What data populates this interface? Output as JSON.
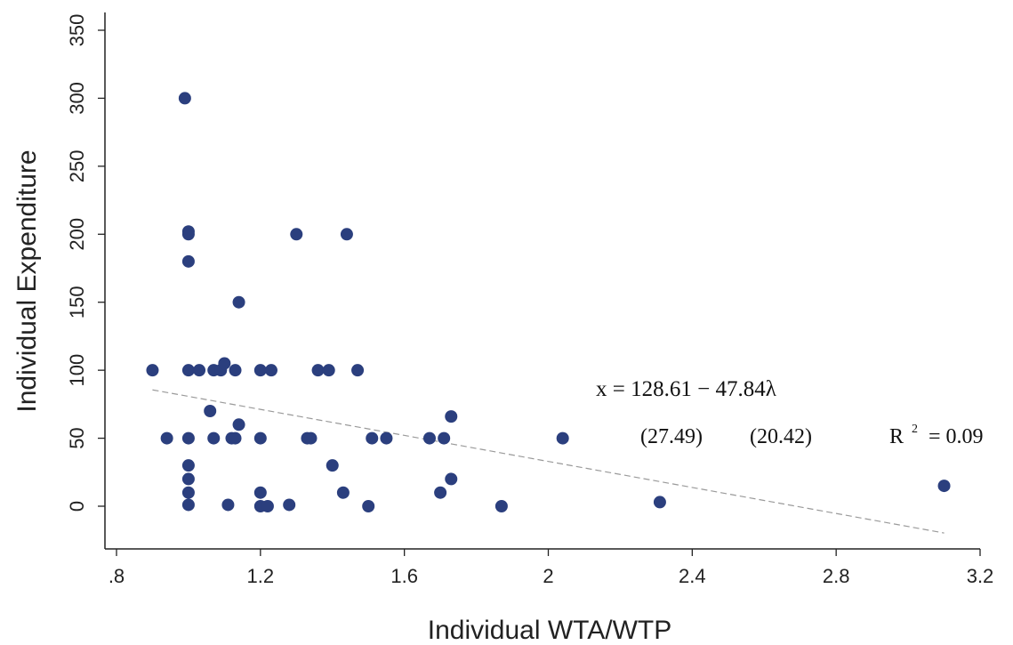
{
  "chart_data": {
    "type": "scatter",
    "xlabel": "Individual  WTA/WTP",
    "ylabel": "Individual  Expenditure",
    "xlim": [
      0.8,
      3.2
    ],
    "ylim": [
      -30,
      360
    ],
    "x_ticks": [
      0.8,
      1.2,
      1.6,
      2.0,
      2.4,
      2.8,
      3.2
    ],
    "x_tick_labels": [
      ".8",
      "1.2",
      "1.6",
      "2",
      "2.4",
      "2.8",
      "3.2"
    ],
    "y_ticks": [
      0,
      50,
      100,
      150,
      200,
      250,
      300,
      350
    ],
    "y_tick_labels": [
      "0",
      "50",
      "100",
      "150",
      "200",
      "250",
      "300",
      "350"
    ],
    "grid": false,
    "point_color": "#2b3f7e",
    "fit_line_color": "#9a9a9a",
    "points": [
      {
        "x": 0.9,
        "y": 100
      },
      {
        "x": 0.94,
        "y": 50
      },
      {
        "x": 0.99,
        "y": 300
      },
      {
        "x": 1.0,
        "y": 202
      },
      {
        "x": 1.0,
        "y": 200
      },
      {
        "x": 1.0,
        "y": 180
      },
      {
        "x": 1.0,
        "y": 100
      },
      {
        "x": 1.0,
        "y": 50
      },
      {
        "x": 1.0,
        "y": 30
      },
      {
        "x": 1.0,
        "y": 20
      },
      {
        "x": 1.0,
        "y": 10
      },
      {
        "x": 1.0,
        "y": 1
      },
      {
        "x": 1.03,
        "y": 100
      },
      {
        "x": 1.06,
        "y": 70
      },
      {
        "x": 1.07,
        "y": 100
      },
      {
        "x": 1.07,
        "y": 50
      },
      {
        "x": 1.09,
        "y": 100
      },
      {
        "x": 1.1,
        "y": 105
      },
      {
        "x": 1.11,
        "y": 1
      },
      {
        "x": 1.12,
        "y": 50
      },
      {
        "x": 1.13,
        "y": 100
      },
      {
        "x": 1.13,
        "y": 50
      },
      {
        "x": 1.14,
        "y": 150
      },
      {
        "x": 1.14,
        "y": 60
      },
      {
        "x": 1.2,
        "y": 100
      },
      {
        "x": 1.2,
        "y": 50
      },
      {
        "x": 1.2,
        "y": 10
      },
      {
        "x": 1.2,
        "y": 0
      },
      {
        "x": 1.22,
        "y": 0
      },
      {
        "x": 1.23,
        "y": 100
      },
      {
        "x": 1.28,
        "y": 1
      },
      {
        "x": 1.3,
        "y": 200
      },
      {
        "x": 1.33,
        "y": 50
      },
      {
        "x": 1.34,
        "y": 50
      },
      {
        "x": 1.36,
        "y": 100
      },
      {
        "x": 1.39,
        "y": 100
      },
      {
        "x": 1.4,
        "y": 30
      },
      {
        "x": 1.43,
        "y": 10
      },
      {
        "x": 1.44,
        "y": 200
      },
      {
        "x": 1.47,
        "y": 100
      },
      {
        "x": 1.5,
        "y": 0
      },
      {
        "x": 1.51,
        "y": 50
      },
      {
        "x": 1.55,
        "y": 50
      },
      {
        "x": 1.67,
        "y": 50
      },
      {
        "x": 1.7,
        "y": 10
      },
      {
        "x": 1.71,
        "y": 50
      },
      {
        "x": 1.73,
        "y": 66
      },
      {
        "x": 1.73,
        "y": 20
      },
      {
        "x": 1.87,
        "y": 0
      },
      {
        "x": 2.04,
        "y": 50
      },
      {
        "x": 2.31,
        "y": 3
      },
      {
        "x": 3.1,
        "y": 15
      }
    ],
    "fit_line": {
      "intercept": 128.61,
      "slope": -47.84,
      "x_range": [
        0.9,
        3.1
      ]
    },
    "annotations": {
      "equation": "x = 128.61 − 47.84λ",
      "intercept_se": "(27.49)",
      "slope_se": "(20.42)",
      "r_squared_base": "R",
      "r_squared_exp": "2",
      "r_squared_value": "= 0.09"
    }
  }
}
